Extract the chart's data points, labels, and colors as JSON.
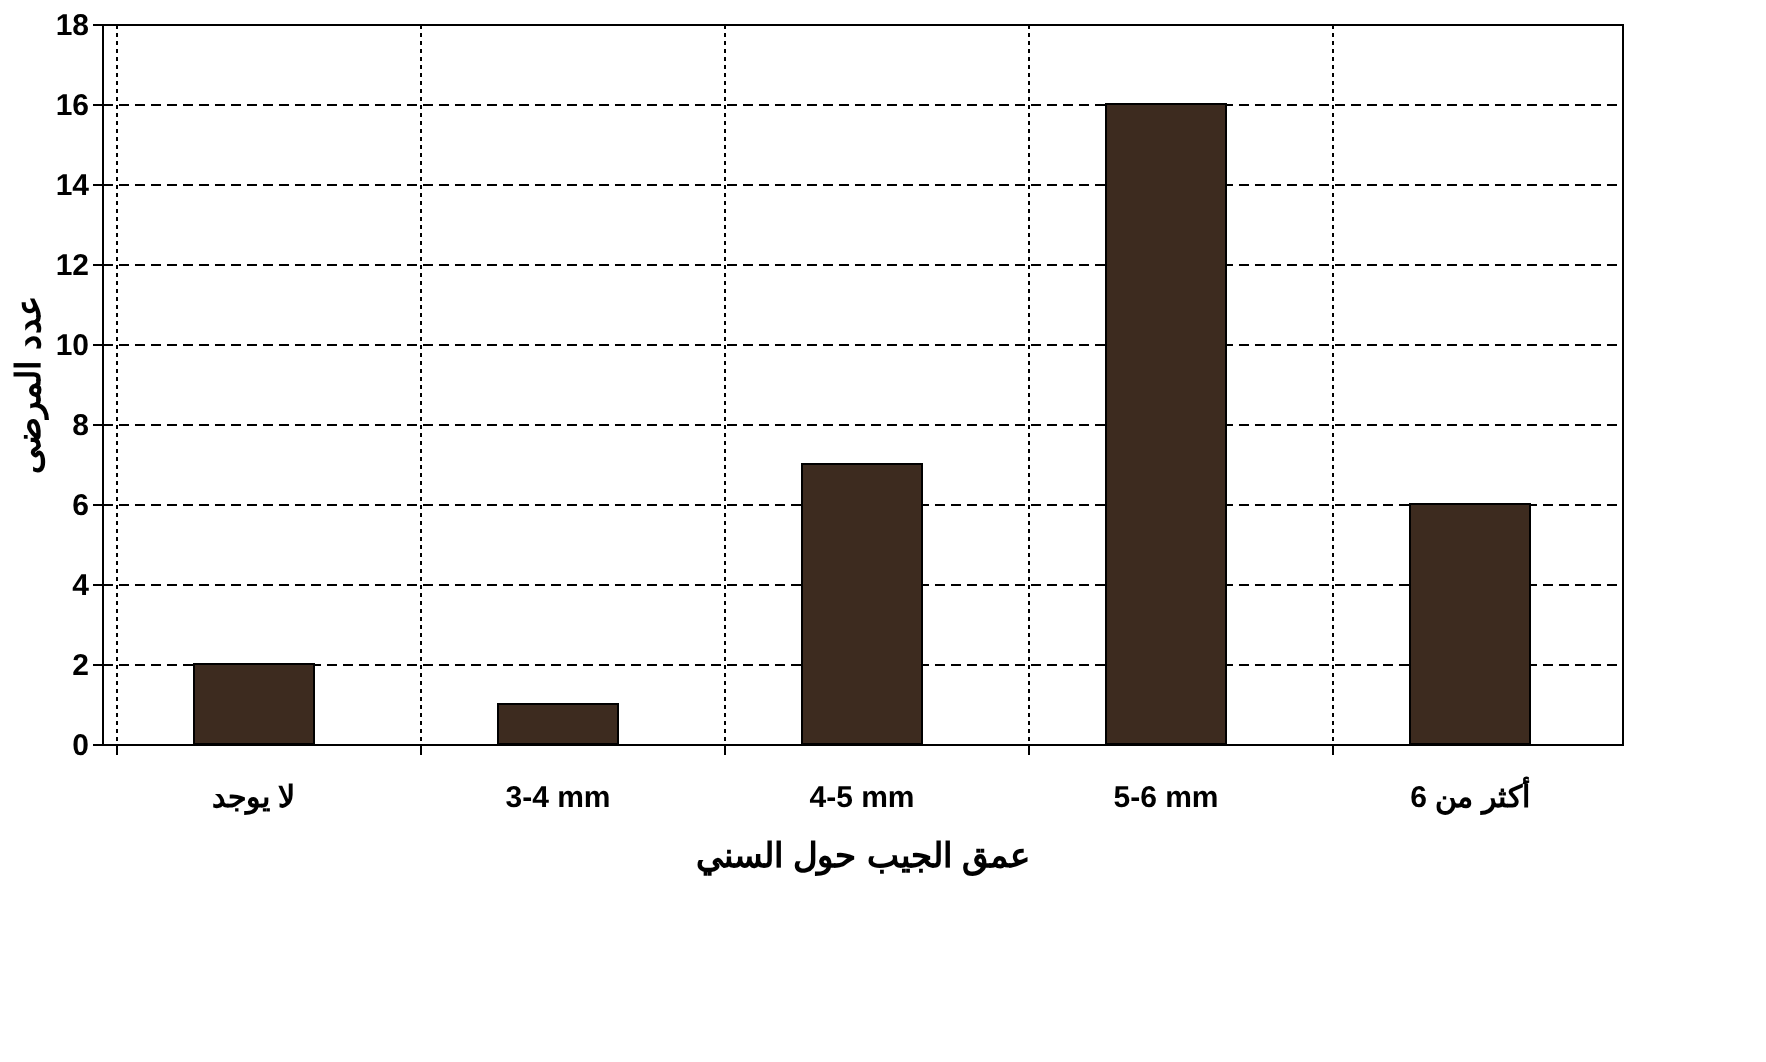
{
  "chart_data": {
    "type": "bar",
    "xlabel": "عمق الجيب حول السني",
    "ylabel": "عدد المرضى",
    "categories": [
      "لا يوجد",
      "3-4 mm",
      "4-5 mm",
      "5-6 mm",
      "أكثر من 6"
    ],
    "values": [
      2,
      1,
      7,
      16,
      6
    ],
    "color": "#3d2b1f",
    "ylim": [
      0,
      18
    ],
    "yticks": [
      0,
      2,
      4,
      6,
      8,
      10,
      12,
      14,
      16,
      18
    ],
    "grid": true
  }
}
